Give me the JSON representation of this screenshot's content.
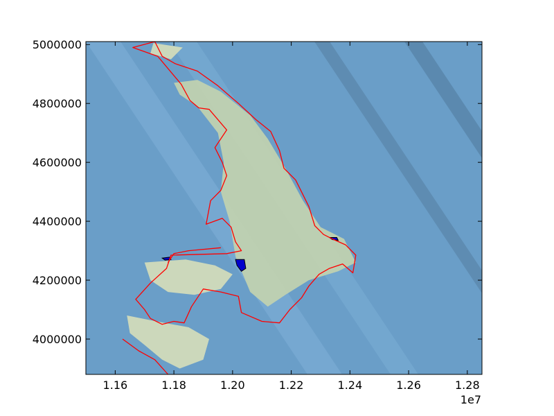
{
  "chart_data": {
    "type": "heatmap",
    "title": "",
    "xlabel": "",
    "ylabel": "",
    "x_offset_label": "1e7",
    "xlim": [
      11500000,
      12850000
    ],
    "ylim": [
      3880000,
      5010000
    ],
    "x_ticks": [
      {
        "value": 11600000,
        "label": "1.16"
      },
      {
        "value": 11800000,
        "label": "1.18"
      },
      {
        "value": 12000000,
        "label": "1.20"
      },
      {
        "value": 12200000,
        "label": "1.22"
      },
      {
        "value": 12400000,
        "label": "1.24"
      },
      {
        "value": 12600000,
        "label": "1.26"
      },
      {
        "value": 12800000,
        "label": "1.28"
      }
    ],
    "y_ticks": [
      {
        "value": 4000000,
        "label": "4000000"
      },
      {
        "value": 4200000,
        "label": "4200000"
      },
      {
        "value": 4400000,
        "label": "4400000"
      },
      {
        "value": 4600000,
        "label": "4600000"
      },
      {
        "value": 4800000,
        "label": "4800000"
      },
      {
        "value": 5000000,
        "label": "5000000"
      }
    ],
    "grid": false,
    "colors": {
      "ocean": "#6a9ec8",
      "ocean_light": "#7fb1d8",
      "ocean_deep": "#5680a4",
      "land": "#c9d6ad",
      "land_light": "#dde2b8",
      "coastline": "#ff0000",
      "lakes": "#0000cc",
      "lake_edge": "#000000"
    },
    "coastline": [
      [
        [
          11735000,
          5010000
        ],
        [
          11660000,
          4990000
        ],
        [
          11745000,
          4960000
        ],
        [
          11825000,
          4865000
        ],
        [
          11855000,
          4810000
        ],
        [
          11885000,
          4785000
        ],
        [
          11920000,
          4780000
        ],
        [
          11980000,
          4710000
        ],
        [
          11940000,
          4650000
        ],
        [
          11965000,
          4600000
        ],
        [
          11980000,
          4555000
        ],
        [
          11960000,
          4505000
        ],
        [
          11925000,
          4470000
        ],
        [
          11910000,
          4390000
        ],
        [
          11965000,
          4410000
        ],
        [
          11995000,
          4380000
        ],
        [
          12010000,
          4330000
        ],
        [
          12030000,
          4300000
        ],
        [
          11980000,
          4290000
        ],
        [
          11790000,
          4285000
        ],
        [
          11775000,
          4240000
        ],
        [
          11720000,
          4190000
        ],
        [
          11670000,
          4135000
        ],
        [
          11700000,
          4100000
        ],
        [
          11720000,
          4070000
        ],
        [
          11760000,
          4050000
        ],
        [
          11800000,
          4060000
        ],
        [
          11835000,
          4055000
        ],
        [
          11860000,
          4110000
        ],
        [
          11900000,
          4170000
        ],
        [
          11960000,
          4160000
        ],
        [
          12020000,
          4145000
        ],
        [
          12030000,
          4090000
        ],
        [
          12100000,
          4060000
        ],
        [
          12160000,
          4055000
        ],
        [
          12195000,
          4100000
        ],
        [
          12235000,
          4140000
        ],
        [
          12260000,
          4180000
        ],
        [
          12295000,
          4220000
        ],
        [
          12330000,
          4240000
        ],
        [
          12375000,
          4255000
        ],
        [
          12410000,
          4225000
        ],
        [
          12420000,
          4285000
        ],
        [
          12385000,
          4320000
        ],
        [
          12340000,
          4340000
        ],
        [
          12310000,
          4355000
        ],
        [
          12280000,
          4385000
        ],
        [
          12260000,
          4450000
        ],
        [
          12215000,
          4540000
        ],
        [
          12175000,
          4580000
        ],
        [
          12160000,
          4640000
        ],
        [
          12130000,
          4705000
        ],
        [
          12080000,
          4745000
        ],
        [
          12020000,
          4800000
        ],
        [
          11950000,
          4860000
        ],
        [
          11880000,
          4910000
        ],
        [
          11805000,
          4935000
        ],
        [
          11760000,
          4960000
        ],
        [
          11735000,
          5010000
        ]
      ],
      [
        [
          11960000,
          4310000
        ],
        [
          11850000,
          4300000
        ],
        [
          11800000,
          4290000
        ],
        [
          11780000,
          4260000
        ]
      ],
      [
        [
          11625000,
          4000000
        ],
        [
          11680000,
          3960000
        ],
        [
          11735000,
          3930000
        ],
        [
          11780000,
          3880000
        ]
      ]
    ],
    "lakes": [
      [
        [
          12010000,
          4270000
        ],
        [
          12040000,
          4270000
        ],
        [
          12045000,
          4240000
        ],
        [
          12030000,
          4230000
        ],
        [
          12015000,
          4250000
        ]
      ],
      [
        [
          12330000,
          4345000
        ],
        [
          12355000,
          4345000
        ],
        [
          12360000,
          4335000
        ],
        [
          12340000,
          4338000
        ]
      ],
      [
        [
          11760000,
          4275000
        ],
        [
          11785000,
          4278000
        ],
        [
          11790000,
          4270000
        ],
        [
          11770000,
          4268000
        ]
      ]
    ],
    "land_regions": [
      [
        [
          11800000,
          4870000
        ],
        [
          11880000,
          4880000
        ],
        [
          11960000,
          4840000
        ],
        [
          12060000,
          4760000
        ],
        [
          12120000,
          4680000
        ],
        [
          12180000,
          4580000
        ],
        [
          12240000,
          4470000
        ],
        [
          12300000,
          4380000
        ],
        [
          12380000,
          4340000
        ],
        [
          12420000,
          4260000
        ],
        [
          12360000,
          4230000
        ],
        [
          12260000,
          4200000
        ],
        [
          12180000,
          4150000
        ],
        [
          12120000,
          4110000
        ],
        [
          12060000,
          4160000
        ],
        [
          12010000,
          4280000
        ],
        [
          11990000,
          4400000
        ],
        [
          11960000,
          4500000
        ],
        [
          11970000,
          4600000
        ],
        [
          11950000,
          4700000
        ],
        [
          11880000,
          4790000
        ],
        [
          11820000,
          4830000
        ]
      ],
      [
        [
          11700000,
          4260000
        ],
        [
          11840000,
          4270000
        ],
        [
          11940000,
          4250000
        ],
        [
          12000000,
          4220000
        ],
        [
          11960000,
          4170000
        ],
        [
          11870000,
          4150000
        ],
        [
          11780000,
          4160000
        ],
        [
          11720000,
          4200000
        ]
      ],
      [
        [
          11640000,
          4080000
        ],
        [
          11740000,
          4060000
        ],
        [
          11850000,
          4040000
        ],
        [
          11920000,
          4000000
        ],
        [
          11900000,
          3930000
        ],
        [
          11820000,
          3900000
        ],
        [
          11760000,
          3930000
        ],
        [
          11700000,
          3980000
        ],
        [
          11650000,
          4020000
        ]
      ],
      [
        [
          11730000,
          5005000
        ],
        [
          11830000,
          4990000
        ],
        [
          11790000,
          4950000
        ],
        [
          11720000,
          4970000
        ]
      ]
    ]
  }
}
